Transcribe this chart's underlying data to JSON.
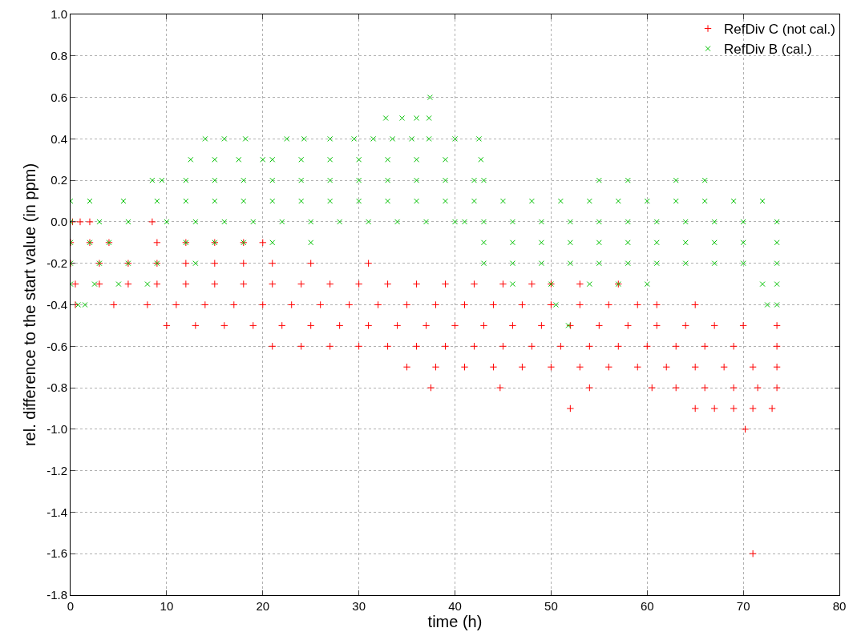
{
  "chart_data": {
    "type": "scatter",
    "xlabel": "time (h)",
    "ylabel": "rel. difference to the start value (in ppm)",
    "xlim": [
      0,
      80
    ],
    "xticks": [
      0,
      10,
      20,
      30,
      40,
      50,
      60,
      70,
      80
    ],
    "ylim": [
      -1.8,
      1.0
    ],
    "yticks": [
      -1.8,
      -1.6,
      -1.4,
      -1.2,
      {
        "value": -1,
        "label": "-1.0"
      },
      -0.8,
      -0.6,
      -0.4,
      -0.2,
      {
        "value": 0,
        "label": "0.0"
      },
      0.2,
      0.4,
      0.6,
      0.8,
      {
        "value": 1,
        "label": "1.0"
      }
    ],
    "grid": true,
    "legend": "top right",
    "series": [
      {
        "name": "RefDiv C (not cal.)",
        "color": "#ff0000",
        "marker": "cross",
        "x": [
          0.2,
          1,
          2,
          8.5,
          0,
          2,
          4,
          9,
          12,
          15,
          18,
          20,
          0,
          3,
          6,
          9,
          12,
          15,
          18,
          21,
          25,
          31,
          0.5,
          3,
          6,
          9,
          12,
          15,
          18,
          21,
          24,
          27,
          30,
          33,
          36,
          39,
          42,
          45,
          48,
          50,
          53,
          57,
          0.5,
          4.5,
          8,
          11,
          14,
          17,
          20,
          23,
          26,
          29,
          32,
          35,
          38,
          41,
          44,
          47,
          50,
          53,
          56,
          59,
          61,
          65,
          10,
          13,
          16,
          19,
          22,
          25,
          28,
          31,
          34,
          37,
          40,
          43,
          46,
          49,
          52,
          55,
          58,
          61,
          64,
          67,
          70,
          73.5,
          21,
          24,
          27,
          30,
          33,
          36,
          39,
          42,
          45,
          48,
          51,
          54,
          57,
          60,
          63,
          66,
          69,
          73.5,
          35,
          38,
          41,
          44,
          47,
          50,
          53,
          56,
          59,
          62,
          65,
          68,
          71,
          73.5,
          37.5,
          44.7,
          54,
          60.5,
          63,
          66,
          69,
          71.5,
          73.5,
          52,
          65,
          67,
          69,
          71,
          73,
          70.2,
          71
        ],
        "values": [
          0,
          0,
          0,
          0,
          -0.1,
          -0.1,
          -0.1,
          -0.1,
          -0.1,
          -0.1,
          -0.1,
          -0.1,
          -0.2,
          -0.2,
          -0.2,
          -0.2,
          -0.2,
          -0.2,
          -0.2,
          -0.2,
          -0.2,
          -0.2,
          -0.3,
          -0.3,
          -0.3,
          -0.3,
          -0.3,
          -0.3,
          -0.3,
          -0.3,
          -0.3,
          -0.3,
          -0.3,
          -0.3,
          -0.3,
          -0.3,
          -0.3,
          -0.3,
          -0.3,
          -0.3,
          -0.3,
          -0.3,
          -0.4,
          -0.4,
          -0.4,
          -0.4,
          -0.4,
          -0.4,
          -0.4,
          -0.4,
          -0.4,
          -0.4,
          -0.4,
          -0.4,
          -0.4,
          -0.4,
          -0.4,
          -0.4,
          -0.4,
          -0.4,
          -0.4,
          -0.4,
          -0.4,
          -0.4,
          -0.5,
          -0.5,
          -0.5,
          -0.5,
          -0.5,
          -0.5,
          -0.5,
          -0.5,
          -0.5,
          -0.5,
          -0.5,
          -0.5,
          -0.5,
          -0.5,
          -0.5,
          -0.5,
          -0.5,
          -0.5,
          -0.5,
          -0.5,
          -0.5,
          -0.5,
          -0.6,
          -0.6,
          -0.6,
          -0.6,
          -0.6,
          -0.6,
          -0.6,
          -0.6,
          -0.6,
          -0.6,
          -0.6,
          -0.6,
          -0.6,
          -0.6,
          -0.6,
          -0.6,
          -0.6,
          -0.6,
          -0.7,
          -0.7,
          -0.7,
          -0.7,
          -0.7,
          -0.7,
          -0.7,
          -0.7,
          -0.7,
          -0.7,
          -0.7,
          -0.7,
          -0.7,
          -0.7,
          -0.8,
          -0.8,
          -0.8,
          -0.8,
          -0.8,
          -0.8,
          -0.8,
          -0.8,
          -0.8,
          -0.9,
          -0.9,
          -0.9,
          -0.9,
          -0.9,
          -0.9,
          -1.0,
          -1.6
        ]
      },
      {
        "name": "RefDiv B (cal.)",
        "color": "#00c000",
        "marker": "x",
        "x": [
          37.4,
          32.8,
          34.5,
          36,
          37.3,
          14,
          16,
          18.2,
          22.5,
          24.3,
          27,
          29.5,
          31.5,
          33.5,
          35.5,
          37.3,
          40,
          42.5,
          12.5,
          15,
          17.5,
          20,
          21,
          24,
          27,
          30,
          33,
          36,
          39,
          42.7,
          8.5,
          9.5,
          12,
          15,
          18,
          21,
          24,
          27,
          30,
          33,
          36,
          39,
          42,
          43,
          55,
          58,
          63,
          66,
          0,
          2,
          5.5,
          9,
          12,
          15,
          18,
          21,
          24,
          27,
          30,
          33,
          36,
          39,
          42,
          45,
          48,
          51,
          54,
          57,
          60,
          63,
          66,
          69,
          72,
          0,
          3,
          6,
          10,
          13,
          16,
          19,
          22,
          25,
          28,
          31,
          34,
          37,
          40,
          41,
          43,
          46,
          49,
          52,
          55,
          58,
          61,
          64,
          67,
          70,
          73.5,
          0,
          2,
          4,
          12,
          15,
          18,
          21,
          25,
          43,
          46,
          49,
          52,
          55,
          58,
          61,
          64,
          67,
          70,
          73.5,
          0,
          3,
          6,
          9,
          13,
          43,
          46,
          49,
          52,
          55,
          58,
          61,
          64,
          67,
          70,
          73.5,
          0,
          2.5,
          5,
          8,
          46,
          50,
          54,
          57,
          60,
          72,
          73.5,
          0.8,
          1.5,
          50.5,
          72.5,
          73.5,
          51.8
        ],
        "values": [
          0.6,
          0.5,
          0.5,
          0.5,
          0.5,
          0.4,
          0.4,
          0.4,
          0.4,
          0.4,
          0.4,
          0.4,
          0.4,
          0.4,
          0.4,
          0.4,
          0.4,
          0.4,
          0.3,
          0.3,
          0.3,
          0.3,
          0.3,
          0.3,
          0.3,
          0.3,
          0.3,
          0.3,
          0.3,
          0.3,
          0.2,
          0.2,
          0.2,
          0.2,
          0.2,
          0.2,
          0.2,
          0.2,
          0.2,
          0.2,
          0.2,
          0.2,
          0.2,
          0.2,
          0.2,
          0.2,
          0.2,
          0.2,
          0.1,
          0.1,
          0.1,
          0.1,
          0.1,
          0.1,
          0.1,
          0.1,
          0.1,
          0.1,
          0.1,
          0.1,
          0.1,
          0.1,
          0.1,
          0.1,
          0.1,
          0.1,
          0.1,
          0.1,
          0.1,
          0.1,
          0.1,
          0.1,
          0.1,
          0,
          0,
          0,
          0,
          0,
          0,
          0,
          0,
          0,
          0,
          0,
          0,
          0,
          0,
          0,
          0,
          0,
          0,
          0,
          0,
          0,
          0,
          0,
          0,
          0,
          0,
          -0.1,
          -0.1,
          -0.1,
          -0.1,
          -0.1,
          -0.1,
          -0.1,
          -0.1,
          -0.1,
          -0.1,
          -0.1,
          -0.1,
          -0.1,
          -0.1,
          -0.1,
          -0.1,
          -0.1,
          -0.1,
          -0.1,
          -0.2,
          -0.2,
          -0.2,
          -0.2,
          -0.2,
          -0.2,
          -0.2,
          -0.2,
          -0.2,
          -0.2,
          -0.2,
          -0.2,
          -0.2,
          -0.2,
          -0.2,
          -0.2,
          -0.3,
          -0.3,
          -0.3,
          -0.3,
          -0.3,
          -0.3,
          -0.3,
          -0.3,
          -0.3,
          -0.3,
          -0.3,
          -0.4,
          -0.4,
          -0.4,
          -0.4,
          -0.4,
          -0.5
        ]
      }
    ]
  }
}
